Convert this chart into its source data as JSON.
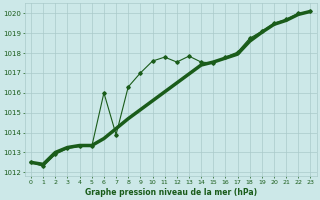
{
  "title": "Graphe pression niveau de la mer (hPa)",
  "xlim": [
    -0.5,
    23.5
  ],
  "ylim": [
    1011.8,
    1020.5
  ],
  "xticks": [
    0,
    1,
    2,
    3,
    4,
    5,
    6,
    7,
    8,
    9,
    10,
    11,
    12,
    13,
    14,
    15,
    16,
    17,
    18,
    19,
    20,
    21,
    22,
    23
  ],
  "yticks": [
    1012,
    1013,
    1014,
    1015,
    1016,
    1017,
    1018,
    1019,
    1020
  ],
  "bg_color": "#cce8e8",
  "grid_color": "#aacaca",
  "line_color": "#1a5c1a",
  "thin_line": [
    [
      0,
      1012.5
    ],
    [
      1,
      1012.3
    ],
    [
      2,
      1012.9
    ],
    [
      3,
      1013.2
    ],
    [
      4,
      1013.3
    ],
    [
      5,
      1013.3
    ],
    [
      6,
      1016.0
    ],
    [
      7,
      1013.9
    ],
    [
      8,
      1016.3
    ],
    [
      9,
      1017.0
    ],
    [
      10,
      1017.6
    ],
    [
      11,
      1017.8
    ],
    [
      12,
      1017.55
    ],
    [
      13,
      1017.85
    ],
    [
      14,
      1017.55
    ],
    [
      15,
      1017.5
    ],
    [
      16,
      1017.8
    ],
    [
      17,
      1018.05
    ],
    [
      18,
      1018.75
    ],
    [
      19,
      1019.1
    ],
    [
      20,
      1019.5
    ],
    [
      21,
      1019.7
    ],
    [
      22,
      1020.0
    ],
    [
      23,
      1020.1
    ]
  ],
  "thick_line": [
    [
      0,
      1012.5
    ],
    [
      1,
      1012.4
    ],
    [
      2,
      1013.0
    ],
    [
      3,
      1013.25
    ],
    [
      4,
      1013.35
    ],
    [
      5,
      1013.35
    ],
    [
      6,
      1013.7
    ],
    [
      7,
      1014.2
    ],
    [
      8,
      1014.7
    ],
    [
      9,
      1015.15
    ],
    [
      10,
      1015.6
    ],
    [
      11,
      1016.05
    ],
    [
      12,
      1016.5
    ],
    [
      13,
      1016.95
    ],
    [
      14,
      1017.4
    ],
    [
      15,
      1017.55
    ],
    [
      16,
      1017.75
    ],
    [
      17,
      1017.95
    ],
    [
      18,
      1018.6
    ],
    [
      19,
      1019.05
    ],
    [
      20,
      1019.45
    ],
    [
      21,
      1019.65
    ],
    [
      22,
      1019.95
    ],
    [
      23,
      1020.1
    ]
  ]
}
